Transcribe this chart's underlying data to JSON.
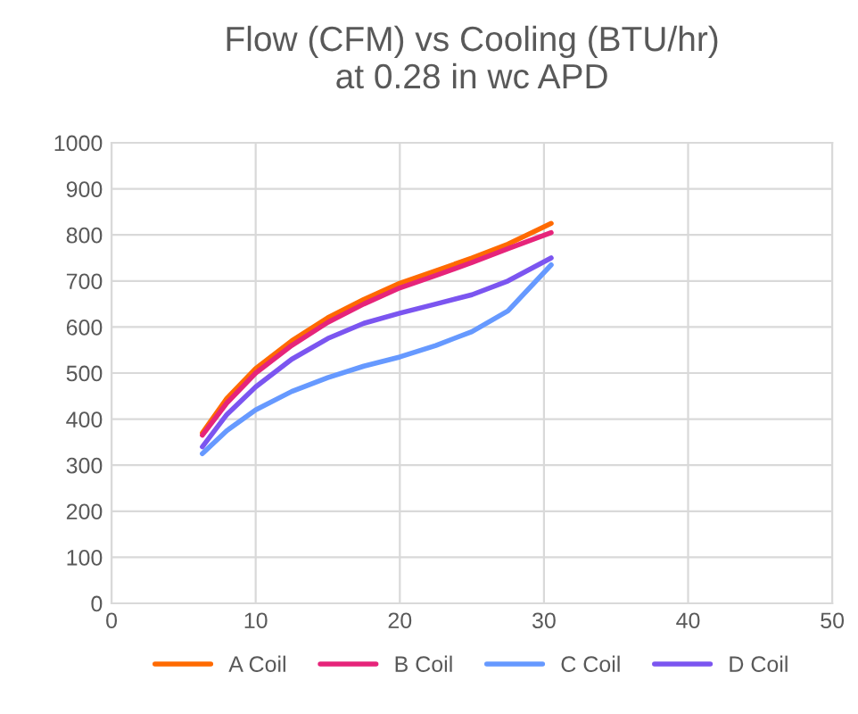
{
  "chart_data": {
    "type": "line",
    "title": "Flow (CFM) vs Cooling (BTU/hr)\nat 0.28 in wc APD",
    "x": [
      6.3,
      8,
      10,
      12.5,
      15,
      17.5,
      20,
      22.5,
      25,
      27.5,
      30.5
    ],
    "series": [
      {
        "name": "A Coil",
        "color": "#ff6a00",
        "values": [
          370,
          445,
          510,
          570,
          620,
          660,
          695,
          722,
          750,
          780,
          825
        ]
      },
      {
        "name": "B Coil",
        "color": "#e6247a",
        "values": [
          365,
          435,
          500,
          560,
          610,
          650,
          685,
          712,
          740,
          770,
          805
        ]
      },
      {
        "name": "C Coil",
        "color": "#6699ff",
        "values": [
          325,
          375,
          420,
          460,
          490,
          515,
          535,
          560,
          590,
          635,
          735
        ]
      },
      {
        "name": "D Coil",
        "color": "#7b55f0",
        "values": [
          340,
          410,
          470,
          530,
          575,
          608,
          630,
          650,
          670,
          700,
          750
        ]
      }
    ],
    "xlim": [
      0,
      50
    ],
    "xticks": [
      0,
      10,
      20,
      30,
      40,
      50
    ],
    "ylim": [
      0,
      1000
    ],
    "yticks": [
      0,
      100,
      200,
      300,
      400,
      500,
      600,
      700,
      800,
      900,
      1000
    ],
    "grid": true,
    "legend": "bottom",
    "marker": "none",
    "line_style": "solid"
  }
}
